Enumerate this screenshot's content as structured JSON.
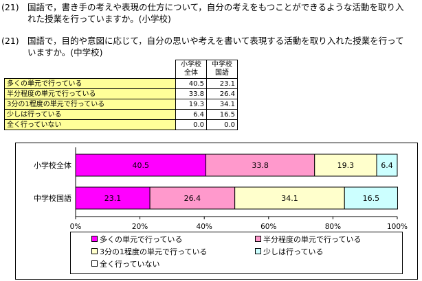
{
  "questions": [
    {
      "num": "(21)",
      "line1": "国語で，書き手の考えや表現の仕方について，自分の考えをもつことができるような活動を取り入",
      "line2": "れた授業を行っていますか。(小学校)"
    },
    {
      "num": "(21)",
      "line1": "国語で，目的や意図に応じて，自分の思いや考えを書いて表現する活動を取り入れた授業を行って",
      "line2": "いますか。(中学校)"
    }
  ],
  "table": {
    "headers": [
      [
        "小学校",
        "全体"
      ],
      [
        "中学校",
        "国語"
      ]
    ],
    "rows": [
      {
        "label": "多くの単元で行っている",
        "v1": "40.5",
        "v2": "23.1"
      },
      {
        "label": "半分程度の単元で行っている",
        "v1": "33.8",
        "v2": "26.4"
      },
      {
        "label": "3分の1程度の単元で行っている",
        "v1": "19.3",
        "v2": "34.1"
      },
      {
        "label": "少しは行っている",
        "v1": "6.4",
        "v2": "16.5"
      },
      {
        "label": "全く行っていない",
        "v1": "0.0",
        "v2": "0.0"
      }
    ]
  },
  "chart_data": {
    "type": "bar",
    "orientation": "horizontal",
    "stacked": true,
    "categories": [
      "小学校全体",
      "中学校国語"
    ],
    "series": [
      {
        "name": "多くの単元で行っている",
        "color": "#ff00ff",
        "values": [
          40.5,
          23.1
        ]
      },
      {
        "name": "半分程度の単元で行っている",
        "color": "#ff99cc",
        "values": [
          33.8,
          26.4
        ]
      },
      {
        "name": "3分の1程度の単元で行っている",
        "color": "#ffffcc",
        "values": [
          19.3,
          34.1
        ]
      },
      {
        "name": "少しは行っている",
        "color": "#ccffff",
        "values": [
          6.4,
          16.5
        ]
      },
      {
        "name": "全く行っていない",
        "color": "#ffffff",
        "values": [
          0.0,
          0.0
        ]
      }
    ],
    "xlim": [
      0,
      100
    ],
    "xticks": [
      "0%",
      "20%",
      "40%",
      "60%",
      "80%",
      "100%"
    ],
    "grid": false,
    "legend_position": "bottom"
  }
}
